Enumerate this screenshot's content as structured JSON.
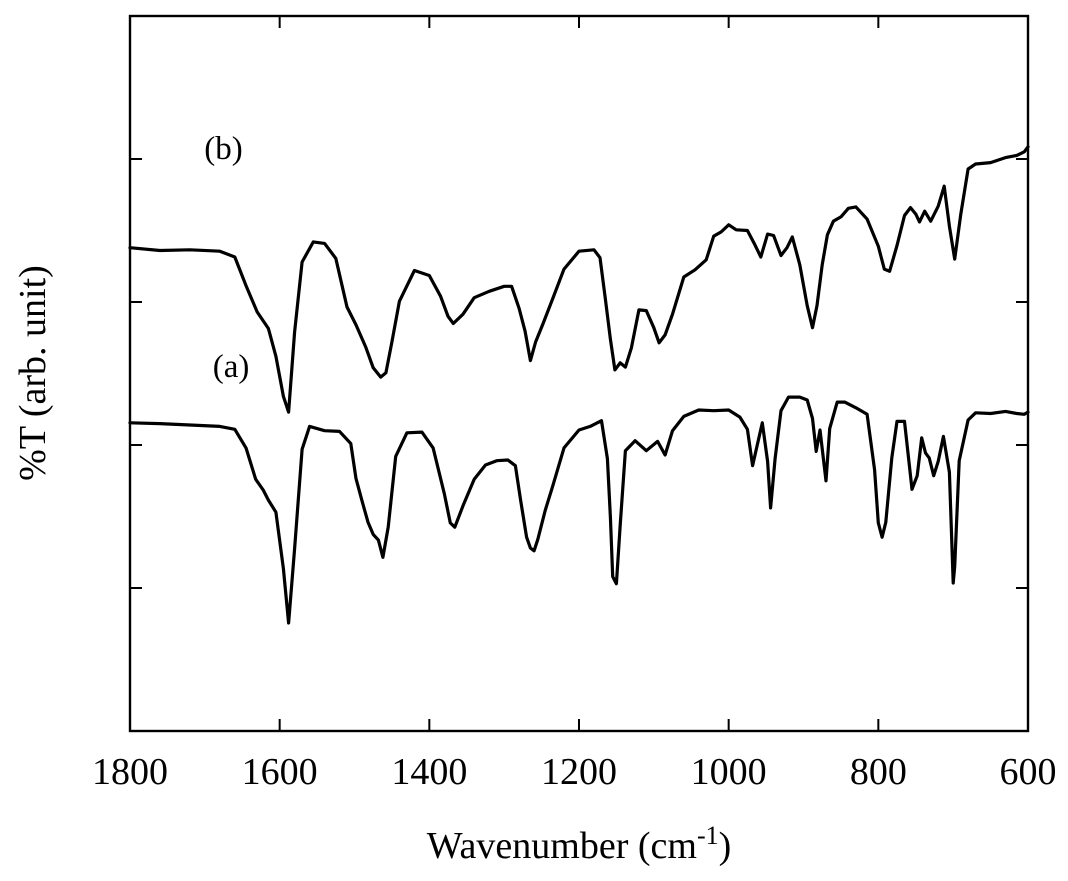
{
  "chart_data": {
    "type": "line",
    "title": "",
    "xlabel": "Wavenumber",
    "xlabel_unit_prefix": "(cm",
    "xlabel_unit_exp": "-1",
    "xlabel_unit_suffix": ")",
    "ylabel": "%T (arb. unit)",
    "xlim": [
      1800,
      600
    ],
    "x_reversed": true,
    "ylim": [
      0,
      100
    ],
    "y_tick_labels_shown": false,
    "x_ticks": [
      {
        "value": 1800,
        "label": "1800"
      },
      {
        "value": 1600,
        "label": "1600"
      },
      {
        "value": 1400,
        "label": "1400"
      },
      {
        "value": 1200,
        "label": "1200"
      },
      {
        "value": 1000,
        "label": "1000"
      },
      {
        "value": 800,
        "label": "800"
      },
      {
        "value": 600,
        "label": "600"
      }
    ],
    "y_ticks": [
      20,
      40,
      60,
      80
    ],
    "grid": false,
    "series": [
      {
        "name": "(b)",
        "x": [
          1800,
          1760,
          1720,
          1680,
          1660,
          1645,
          1630,
          1615,
          1605,
          1595,
          1588,
          1580,
          1570,
          1555,
          1540,
          1525,
          1510,
          1498,
          1485,
          1475,
          1465,
          1458,
          1450,
          1440,
          1420,
          1400,
          1385,
          1375,
          1368,
          1355,
          1340,
          1320,
          1300,
          1290,
          1280,
          1272,
          1265,
          1258,
          1248,
          1235,
          1220,
          1200,
          1180,
          1172,
          1165,
          1158,
          1152,
          1145,
          1138,
          1130,
          1120,
          1110,
          1100,
          1093,
          1085,
          1075,
          1060,
          1045,
          1030,
          1020,
          1010,
          1000,
          990,
          975,
          965,
          957,
          948,
          940,
          930,
          922,
          915,
          905,
          895,
          888,
          882,
          875,
          868,
          860,
          850,
          840,
          830,
          815,
          800,
          792,
          785,
          775,
          765,
          757,
          750,
          745,
          738,
          730,
          720,
          712,
          705,
          698,
          690,
          680,
          670,
          650,
          630,
          615,
          605,
          600
        ],
        "y": [
          67.6,
          67.2,
          67.3,
          67.1,
          66.3,
          62.3,
          58.6,
          56.3,
          52.4,
          46.8,
          44.6,
          55.8,
          65.6,
          68.4,
          68.2,
          66.1,
          59.3,
          56.8,
          53.7,
          50.8,
          49.5,
          50.1,
          54.4,
          60.1,
          64.4,
          63.7,
          60.8,
          58.0,
          57.0,
          58.3,
          60.6,
          61.5,
          62.2,
          62.2,
          59.1,
          55.9,
          51.8,
          54.4,
          57.0,
          60.5,
          64.6,
          67.1,
          67.3,
          66.2,
          60.6,
          54.8,
          50.5,
          51.5,
          50.9,
          53.6,
          58.9,
          58.8,
          56.4,
          54.3,
          55.4,
          58.3,
          63.5,
          64.5,
          65.9,
          69.2,
          69.8,
          70.8,
          70.1,
          70.0,
          68.0,
          66.3,
          69.5,
          69.3,
          66.5,
          67.6,
          69.1,
          65.2,
          59.5,
          56.4,
          59.5,
          65.2,
          69.4,
          71.3,
          71.9,
          73.1,
          73.3,
          71.6,
          67.8,
          64.6,
          64.3,
          67.9,
          72.1,
          73.2,
          72.3,
          71.2,
          72.7,
          71.3,
          73.4,
          76.2,
          70.6,
          66.0,
          72.2,
          78.6,
          79.3,
          79.5,
          80.2,
          80.5,
          81.0,
          81.7
        ]
      },
      {
        "name": "(a)",
        "x": [
          1800,
          1760,
          1720,
          1680,
          1660,
          1645,
          1632,
          1622,
          1615,
          1605,
          1595,
          1588,
          1580,
          1570,
          1560,
          1540,
          1520,
          1505,
          1498,
          1490,
          1482,
          1475,
          1468,
          1462,
          1455,
          1445,
          1430,
          1410,
          1395,
          1380,
          1372,
          1366,
          1355,
          1340,
          1325,
          1310,
          1295,
          1285,
          1278,
          1270,
          1265,
          1260,
          1255,
          1245,
          1235,
          1220,
          1200,
          1185,
          1170,
          1162,
          1158,
          1155,
          1150,
          1145,
          1138,
          1125,
          1110,
          1095,
          1085,
          1075,
          1060,
          1040,
          1020,
          1000,
          985,
          975,
          968,
          962,
          955,
          948,
          944,
          938,
          930,
          920,
          905,
          895,
          888,
          883,
          878,
          870,
          865,
          855,
          845,
          830,
          815,
          805,
          800,
          795,
          790,
          782,
          775,
          765,
          755,
          748,
          742,
          737,
          732,
          726,
          720,
          713,
          705,
          700,
          698,
          692,
          680,
          670,
          650,
          630,
          615,
          605,
          600
        ],
        "y": [
          43.1,
          43.0,
          42.8,
          42.6,
          42.2,
          39.6,
          35.2,
          33.7,
          32.3,
          30.6,
          22.7,
          15.1,
          25.5,
          39.4,
          42.6,
          42.0,
          41.9,
          40.2,
          35.3,
          32.2,
          29.2,
          27.5,
          26.7,
          24.3,
          28.5,
          38.4,
          41.7,
          41.8,
          39.6,
          33.2,
          29.1,
          28.5,
          31.5,
          35.2,
          37.2,
          37.8,
          37.9,
          37.1,
          32.3,
          27.1,
          25.6,
          25.2,
          26.8,
          30.9,
          34.3,
          39.6,
          42.1,
          42.6,
          43.4,
          38.1,
          29.9,
          21.6,
          20.6,
          28.8,
          39.2,
          40.6,
          39.2,
          40.5,
          38.6,
          42.0,
          44.0,
          44.9,
          44.8,
          44.9,
          43.9,
          42.2,
          37.1,
          39.9,
          43.1,
          37.7,
          31.2,
          38.1,
          44.8,
          46.7,
          46.7,
          46.3,
          43.7,
          39.1,
          42.1,
          35.0,
          42.3,
          46.0,
          46.0,
          45.2,
          44.3,
          36.5,
          29.1,
          27.1,
          29.2,
          38.2,
          43.3,
          43.3,
          33.8,
          35.7,
          41.0,
          38.9,
          38.2,
          35.7,
          37.7,
          41.2,
          36.2,
          20.7,
          23.0,
          37.8,
          43.5,
          44.5,
          44.4,
          44.7,
          44.4,
          44.3,
          44.6
        ]
      }
    ],
    "annotations": [
      {
        "text": "(b)",
        "x": 1675,
        "y": 80
      },
      {
        "text": "(a)",
        "x": 1665,
        "y": 49.5
      }
    ]
  }
}
